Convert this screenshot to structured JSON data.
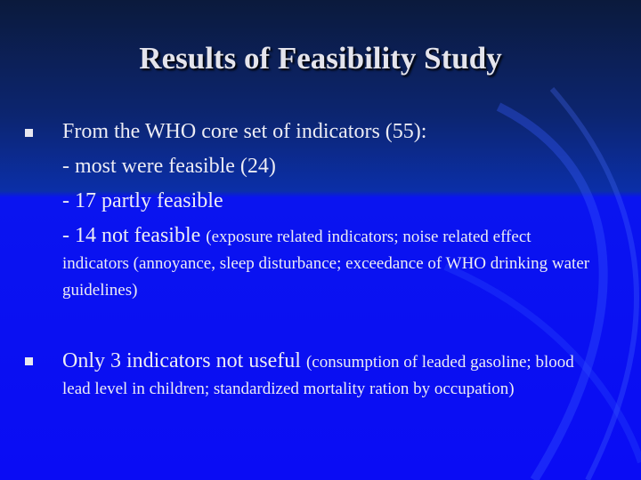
{
  "title": "Results of Feasibility Study",
  "bullets": [
    {
      "lines": [
        "From the WHO core set of indicators (55):",
        "- most were feasible (24)",
        "- 17 partly feasible",
        "- 14 not feasible"
      ],
      "note": "(exposure related indicators; noise related effect indicators (annoyance, sleep disturbance; exceedance of WHO drinking water guidelines)"
    },
    {
      "text": "Only 3 indicators not useful",
      "note": "(consumption of leaded gasoline; blood lead level in children; standardized mortality ration by occupation)"
    }
  ]
}
